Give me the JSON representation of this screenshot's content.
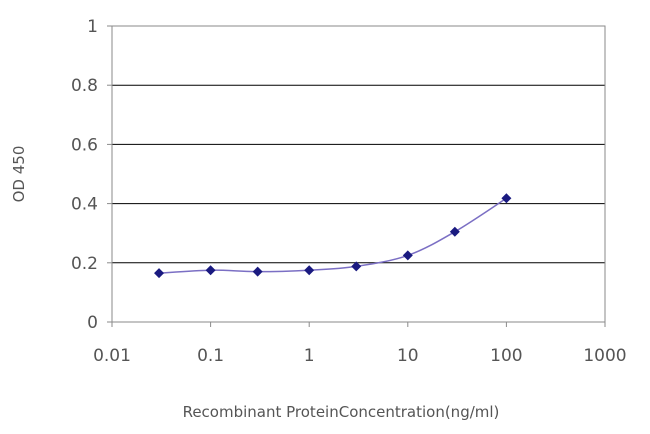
{
  "chart_data": {
    "type": "line",
    "xlabel": "Recombinant ProteinConcentration(ng/ml)",
    "ylabel": "OD 450",
    "x_scale": "log",
    "xlim": [
      0.01,
      1000
    ],
    "ylim": [
      0,
      1
    ],
    "x_ticks": [
      "0.01",
      "0.1",
      "1",
      "10",
      "100",
      "1000"
    ],
    "y_ticks": [
      "0",
      "0.2",
      "0.4",
      "0.6",
      "0.8",
      "1"
    ],
    "grid": "horizontal",
    "legend": "none",
    "colors": {
      "line": "#7b6fc4",
      "marker": "#1a1a80",
      "grid": "#000000",
      "frame": "#8a8a8a"
    },
    "series": [
      {
        "x": [
          0.03,
          0.1,
          0.3,
          1,
          3,
          10,
          30,
          100
        ],
        "y": [
          0.165,
          0.175,
          0.17,
          0.175,
          0.188,
          0.225,
          0.305,
          0.418
        ]
      }
    ]
  }
}
